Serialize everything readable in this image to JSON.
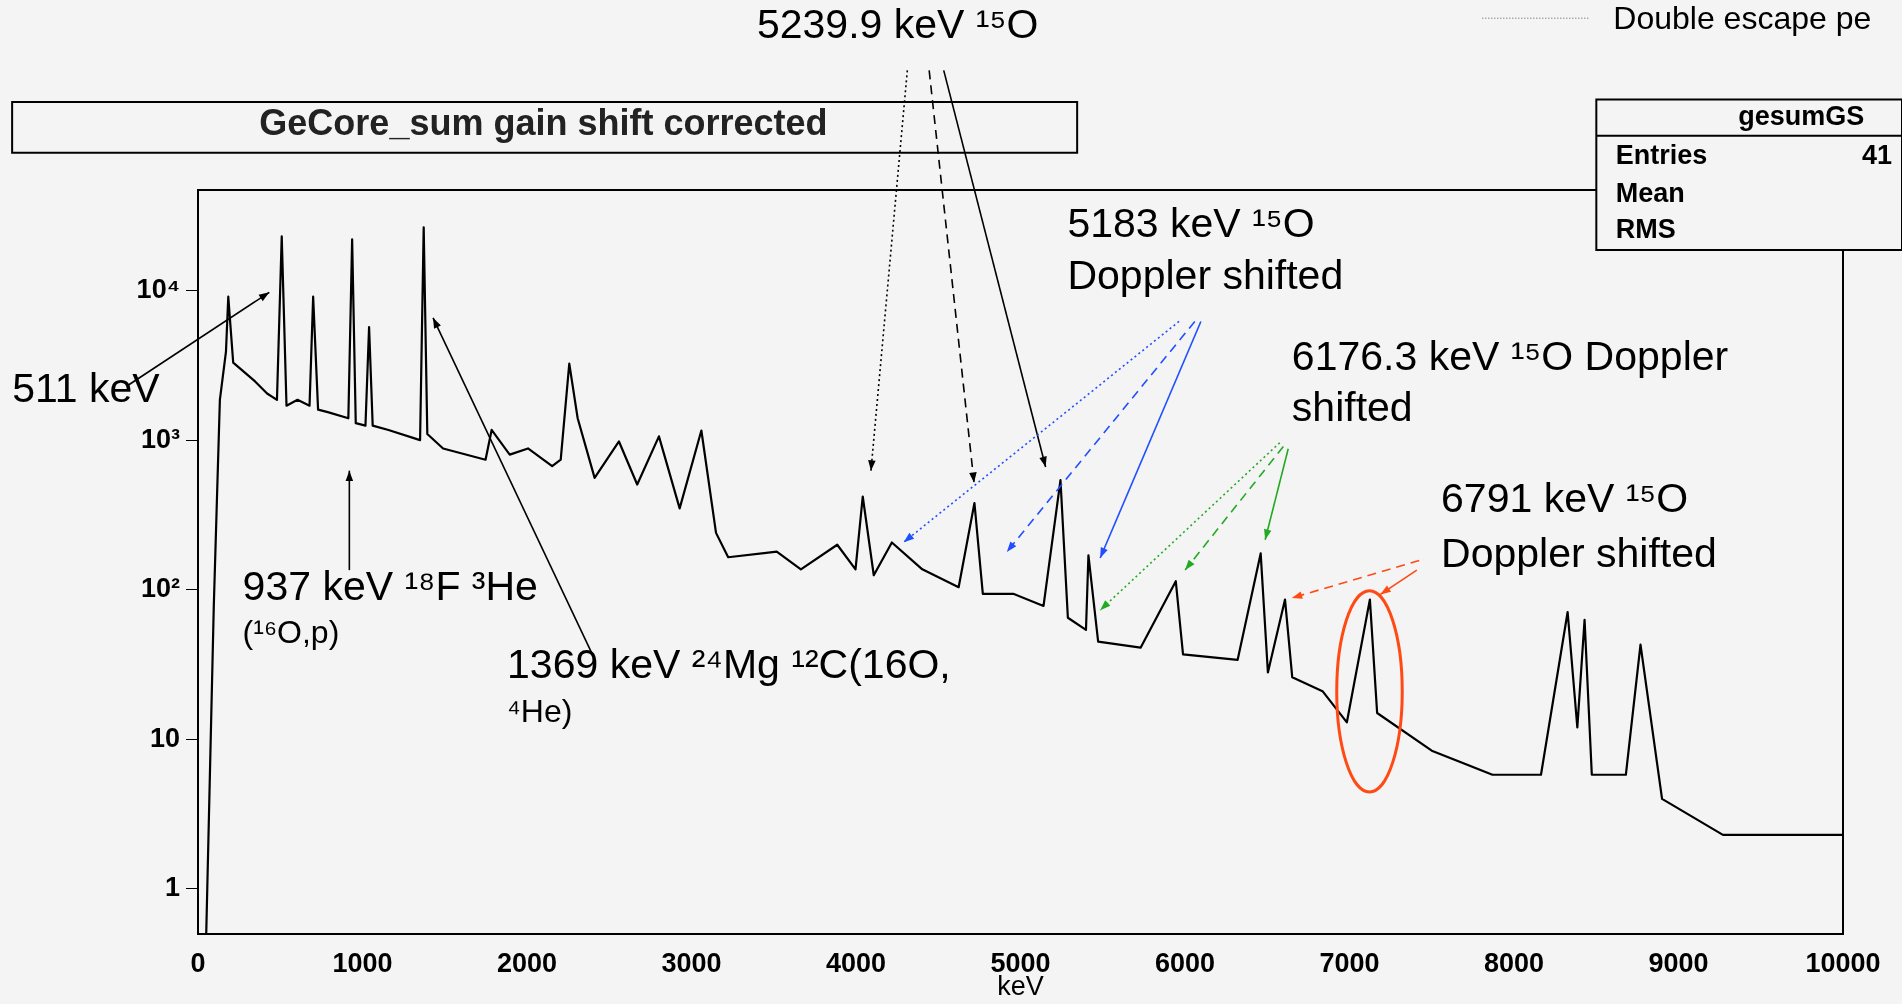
{
  "chart_data": {
    "type": "line",
    "title": "GeCore_sum gain shift corrected",
    "xlabel": "keV",
    "x": [
      50,
      96,
      133,
      170,
      184,
      214,
      347,
      420,
      480,
      509,
      538,
      605,
      678,
      700,
      730,
      789,
      914,
      937,
      959,
      1018,
      1040,
      1062,
      1158,
      1350,
      1372,
      1394,
      1490,
      1748,
      1785,
      1895,
      2006,
      2153,
      2205,
      2257,
      2308,
      2411,
      2559,
      2670,
      2802,
      2928,
      3060,
      3149,
      3223,
      3518,
      3665,
      3886,
      3997,
      4041,
      4108,
      4218,
      4403,
      4624,
      4720,
      4771,
      4956,
      5140,
      5243,
      5288,
      5398,
      5413,
      5472,
      5730,
      5944,
      5988,
      6320,
      6460,
      6504,
      6608,
      6652,
      6836,
      6984,
      7124,
      7168,
      7500,
      7869,
      8164,
      8326,
      8385,
      8429,
      8473,
      8680,
      8769,
      8900,
      9270,
      10000
    ],
    "series": [
      {
        "color": "#000000",
        "values": [
          0.5,
          78,
          1860,
          3900,
          9100,
          3300,
          2470,
          2050,
          1860,
          23000,
          1700,
          1860,
          1700,
          9100,
          1600,
          1540,
          1400,
          22000,
          1300,
          1250,
          5700,
          1250,
          1170,
          1000,
          26500,
          1100,
          880,
          740,
          1170,
          800,
          880,
          670,
          740,
          3250,
          1400,
          560,
          980,
          505,
          1060,
          350,
          1160,
          240,
          165,
          180,
          137,
          200,
          137,
          420,
          125,
          207,
          137,
          104,
          380,
          94,
          94,
          78,
          540,
          65,
          54,
          170,
          45,
          41,
          114,
          37,
          34,
          175,
          28,
          86,
          26,
          21,
          13,
          86,
          15,
          8.4,
          5.8,
          5.8,
          71,
          12,
          63,
          5.8,
          5.8,
          43,
          4,
          2.3,
          2.3
        ]
      }
    ],
    "xlim": [
      0,
      10000
    ],
    "xticks": [
      0,
      1000,
      2000,
      3000,
      4000,
      5000,
      6000,
      7000,
      8000,
      9000,
      10000
    ],
    "ylim": [
      0.5,
      47000
    ],
    "yticks": [
      1,
      10,
      {
        "value": 100,
        "label": "10²"
      },
      {
        "value": 1000,
        "label": "10³"
      },
      {
        "value": 10000,
        "label": "10⁴"
      }
    ],
    "log": true,
    "grid": false,
    "legend": false,
    "marker": "none",
    "line_style": "solid",
    "annotations": [
      "5239.9 keV ¹⁵O",
      "Double escape pe",
      "gesumGS",
      "Entries",
      "41",
      "Mean",
      "RMS",
      "5183 keV ¹⁵O\nDoppler shifted",
      "6176.3 keV ¹⁵O Doppler\nshifted",
      "6791 keV ¹⁵O\nDoppler shifted",
      "511 keV",
      "937 keV ¹⁸F ³He\n(¹⁶O,p)",
      "1369 keV ²⁴Mg ¹²C(16O,\n⁴He)"
    ]
  }
}
